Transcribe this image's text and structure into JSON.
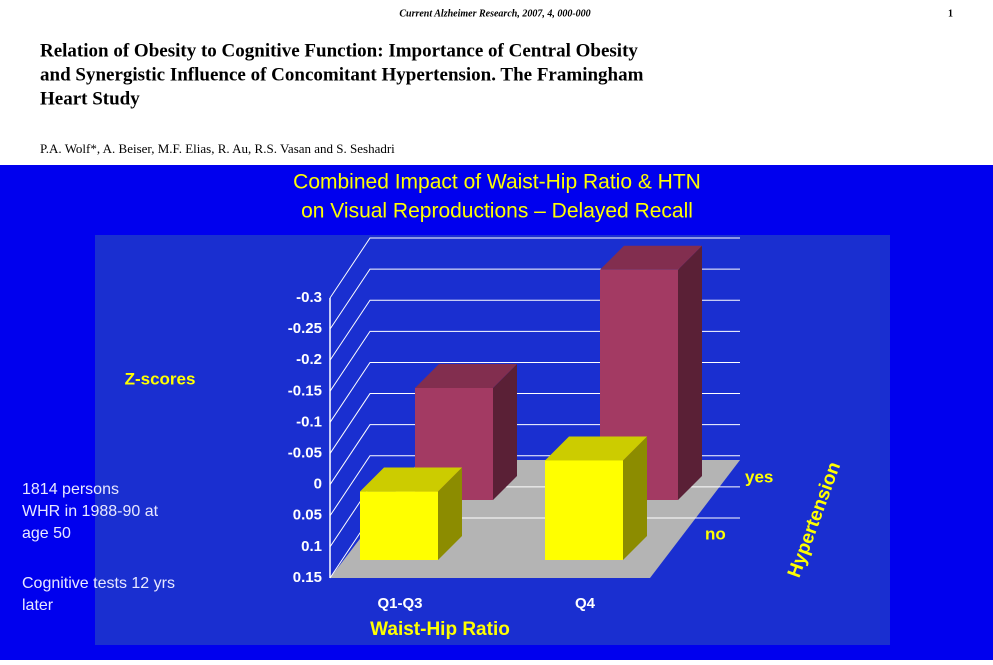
{
  "header": {
    "journal": "Current Alzheimer Research, 2007, 4, 000-000",
    "page": "1",
    "title": [
      "Relation of Obesity to Cognitive Function: Importance of Central Obesity",
      "and Synergistic Influence of Concomitant Hypertension. The Framingham",
      "Heart Study"
    ],
    "authors": "P.A. Wolf*, A. Beiser, M.F. Elias, R. Au, R.S. Vasan and S. Seshadri"
  },
  "chart_data": {
    "type": "bar",
    "title": [
      "Combined Impact of Waist-Hip Ratio & HTN",
      "on Visual Reproductions – Delayed Recall"
    ],
    "y_label": "Z-scores",
    "x_label": "Waist-Hip Ratio",
    "z_label": "Hypertension",
    "categories": [
      "Q1-Q3",
      "Q4"
    ],
    "series": [
      {
        "name": "no",
        "color": "#ffff00",
        "values": [
          0.04,
          -0.01
        ]
      },
      {
        "name": "yes",
        "color": "#a33a63",
        "values": [
          -0.03,
          -0.22
        ]
      }
    ],
    "ylim": [
      0.15,
      -0.3
    ],
    "yticks": [
      -0.3,
      -0.25,
      -0.2,
      -0.15,
      -0.1,
      -0.05,
      0,
      0.05,
      0.1,
      0.15
    ],
    "notes": [
      "1814 persons",
      "WHR in 1988-90 at",
      "age 50",
      "Cognitive tests 12 yrs",
      "later"
    ]
  }
}
